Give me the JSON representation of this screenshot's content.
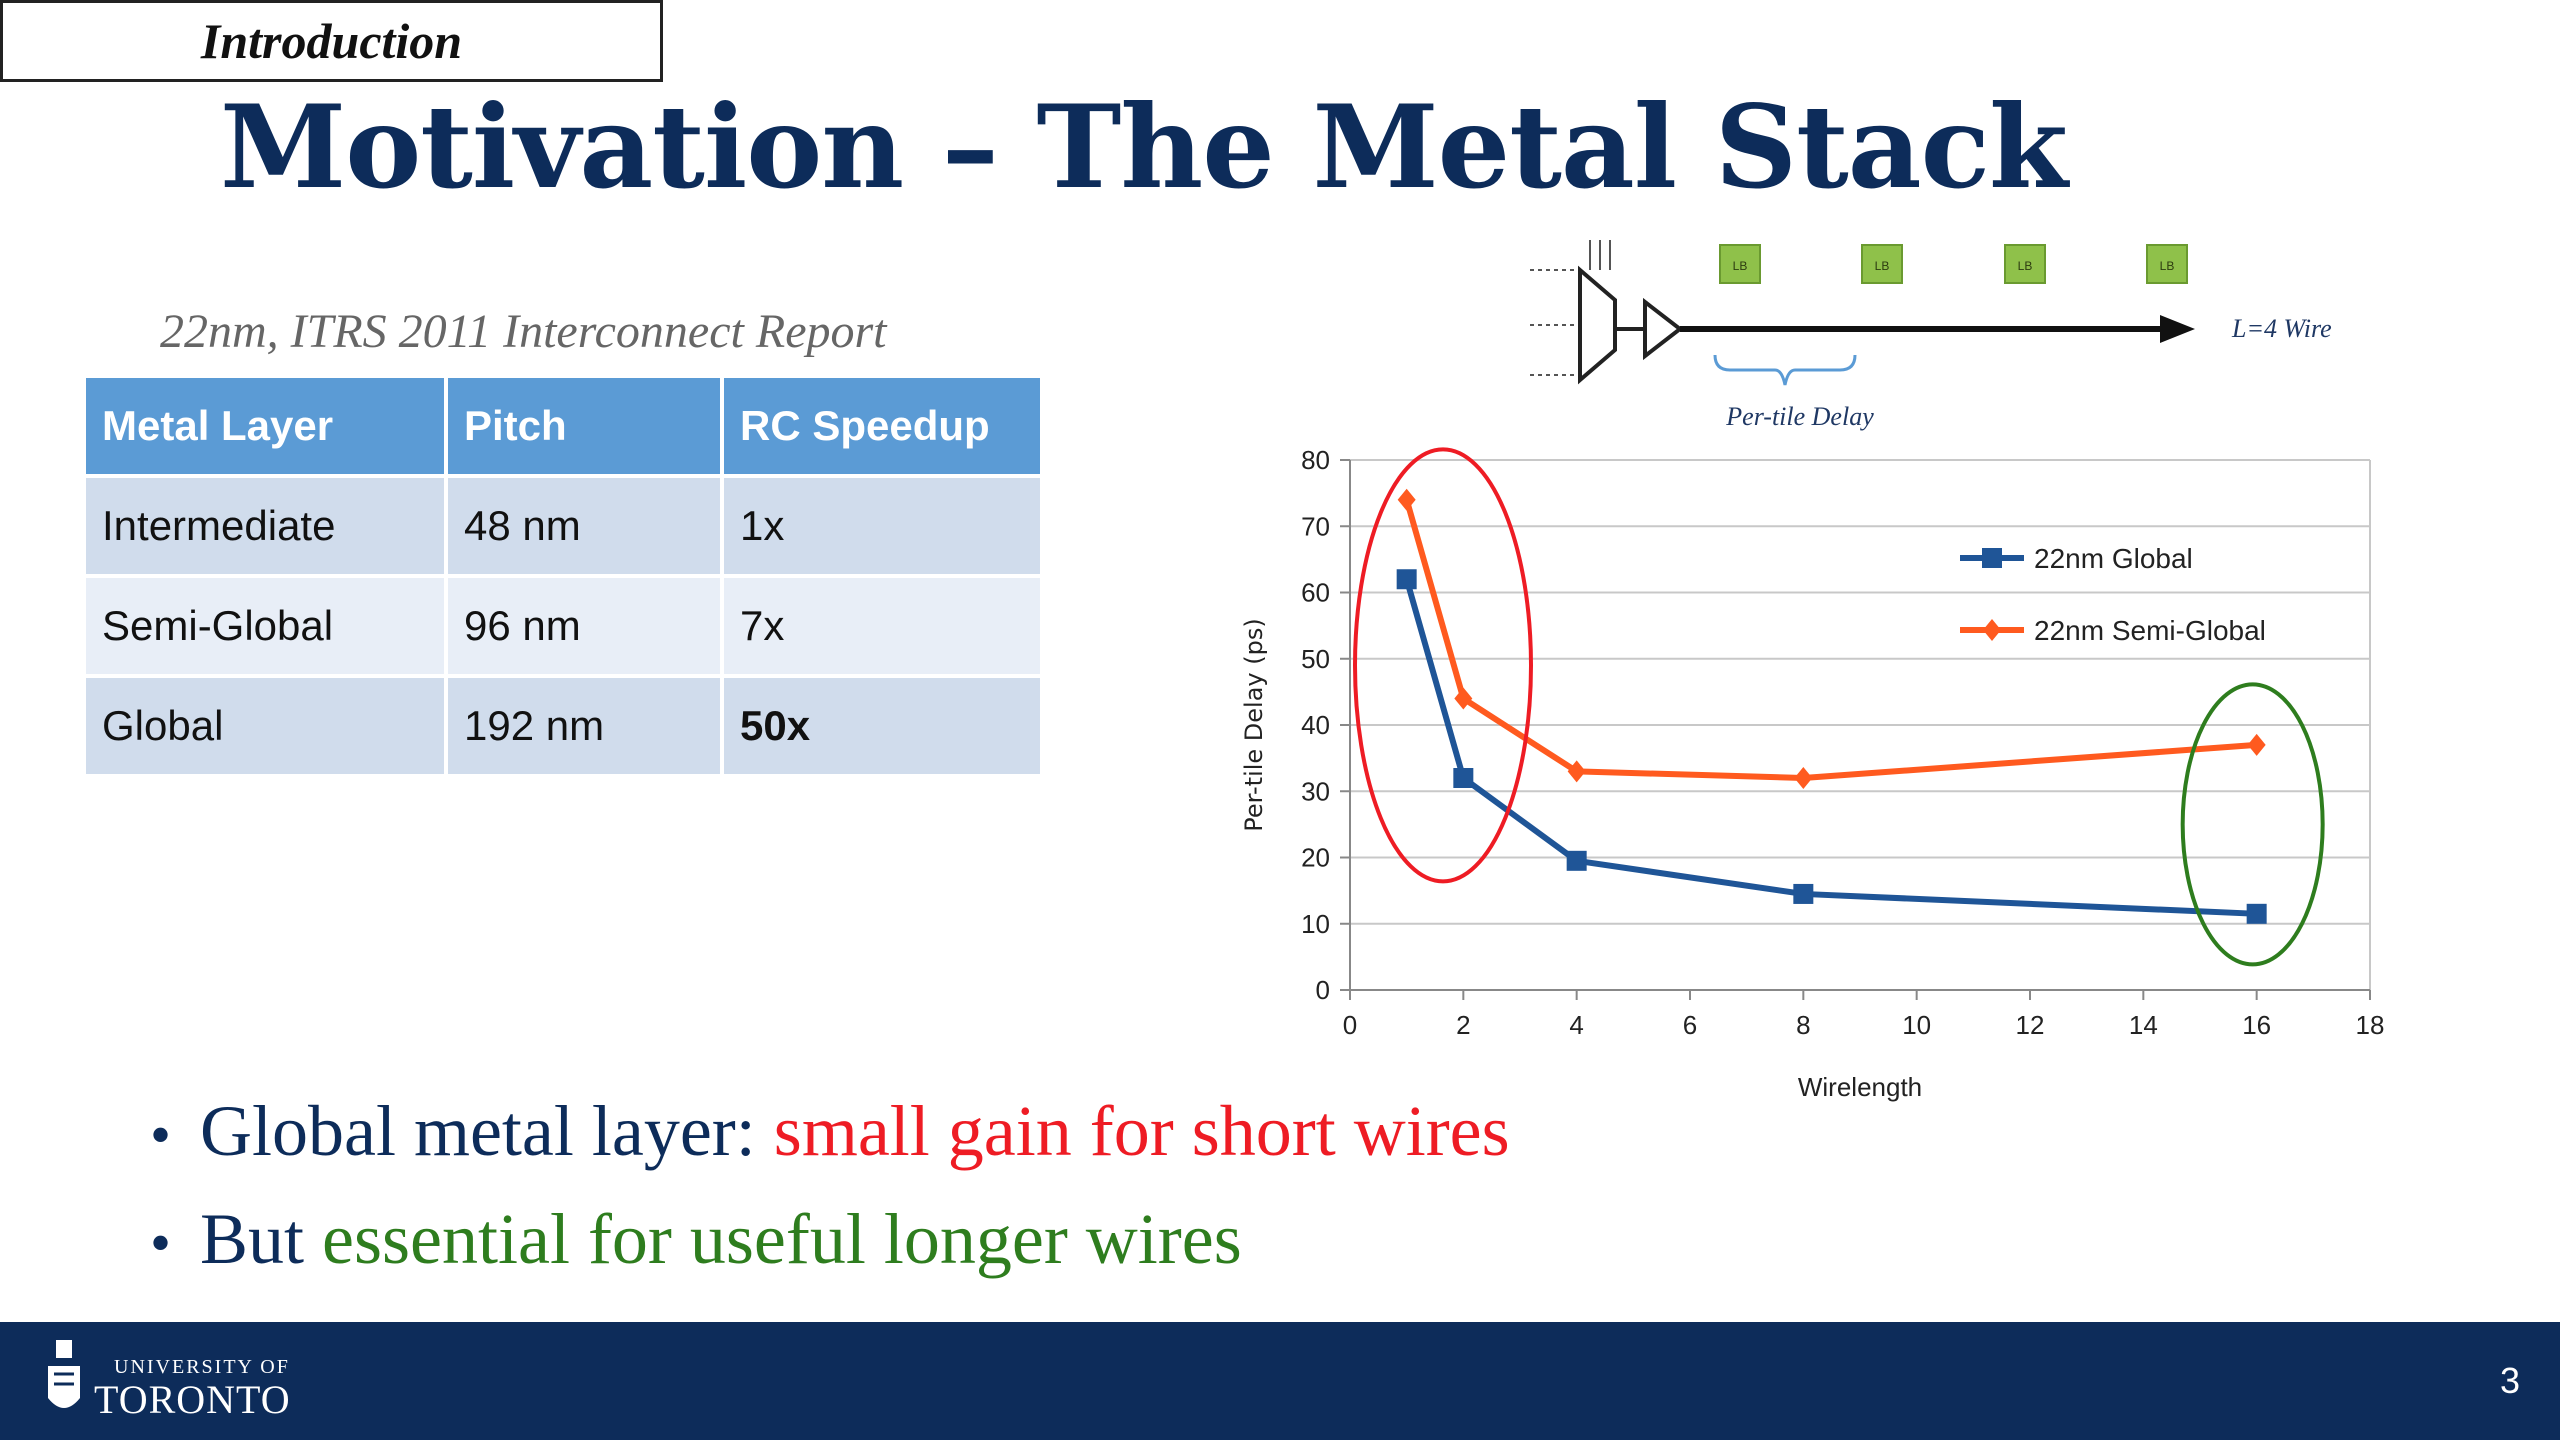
{
  "section_tag": "Introduction",
  "title": "Motivation – The Metal Stack",
  "table": {
    "caption": "22nm, ITRS 2011 Interconnect Report",
    "headers": [
      "Metal Layer",
      "Pitch",
      "RC Speedup"
    ],
    "rows": [
      [
        "Intermediate",
        "48 nm",
        "1x"
      ],
      [
        "Semi-Global",
        "96 nm",
        "7x"
      ],
      [
        "Global",
        "192 nm",
        "50x"
      ]
    ]
  },
  "diagram": {
    "block_label": "LB",
    "wire_label": "L=4 Wire",
    "brace_label": "Per-tile Delay"
  },
  "chart_data": {
    "type": "line",
    "xlabel": "Wirelength",
    "ylabel": "Per-tile Delay (ps)",
    "xlim": [
      0,
      18
    ],
    "ylim": [
      0,
      80
    ],
    "xticks": [
      0,
      2,
      4,
      6,
      8,
      10,
      12,
      14,
      16,
      18
    ],
    "yticks": [
      0,
      10,
      20,
      30,
      40,
      50,
      60,
      70,
      80
    ],
    "grid": true,
    "legend_position": "top-right",
    "series": [
      {
        "name": "22nm Global",
        "color": "#1f5597",
        "marker": "square",
        "x": [
          1,
          2,
          4,
          8,
          16
        ],
        "y": [
          62,
          32,
          19.5,
          14.5,
          11.5
        ]
      },
      {
        "name": "22nm Semi-Global",
        "color": "#ff5a1f",
        "marker": "diamond",
        "x": [
          1,
          2,
          4,
          8,
          16
        ],
        "y": [
          74,
          44,
          33,
          32,
          37
        ]
      }
    ],
    "annotations": [
      {
        "shape": "ellipse",
        "color": "#ee1c24",
        "around_x": [
          1,
          2
        ]
      },
      {
        "shape": "ellipse",
        "color": "#2e7d1e",
        "around_x": [
          16
        ]
      }
    ]
  },
  "bullets": [
    {
      "prefix": "Global metal layer: ",
      "highlight": "small gain for short wires",
      "highlight_color": "#ee1c24"
    },
    {
      "prefix": "But ",
      "highlight": "essential for useful longer wires",
      "highlight_color": "#2e7d1e"
    }
  ],
  "footer": {
    "logo_small": "UNIVERSITY OF",
    "logo_big": "TORONTO",
    "page_number": "3"
  }
}
